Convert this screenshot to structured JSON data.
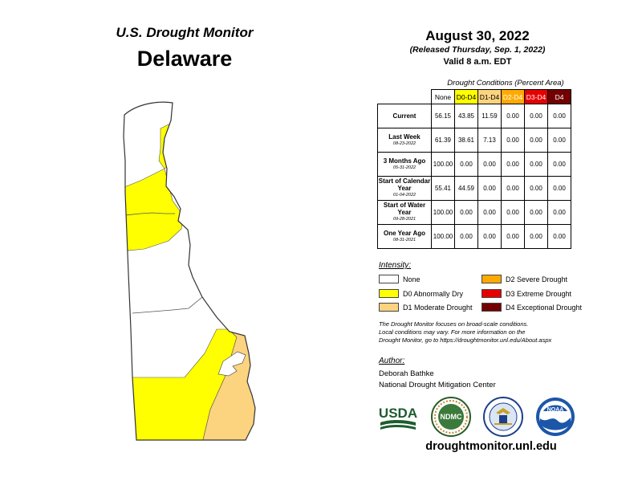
{
  "header": {
    "map_title": "U.S. Drought Monitor",
    "state": "Delaware",
    "date": "August 30, 2022",
    "released": "(Released Thursday, Sep. 1, 2022)",
    "valid": "Valid 8 a.m. EDT"
  },
  "table": {
    "caption": "Drought Conditions (Percent Area)",
    "columns": [
      {
        "label": "None",
        "bg": "#ffffff",
        "fg": "#000000"
      },
      {
        "label": "D0-D4",
        "bg": "#ffff00",
        "fg": "#000000"
      },
      {
        "label": "D1-D4",
        "bg": "#fcd37f",
        "fg": "#000000"
      },
      {
        "label": "D2-D4",
        "bg": "#ffaa00",
        "fg": "#ffffff"
      },
      {
        "label": "D3-D4",
        "bg": "#e60000",
        "fg": "#ffffff"
      },
      {
        "label": "D4",
        "bg": "#730000",
        "fg": "#ffffff"
      }
    ],
    "rows": [
      {
        "label": "Current",
        "sub": "",
        "values": [
          "56.15",
          "43.85",
          "11.59",
          "0.00",
          "0.00",
          "0.00"
        ]
      },
      {
        "label": "Last Week",
        "sub": "08-23-2022",
        "values": [
          "61.39",
          "38.61",
          "7.13",
          "0.00",
          "0.00",
          "0.00"
        ]
      },
      {
        "label": "3 Months Ago",
        "sub": "05-31-2022",
        "values": [
          "100.00",
          "0.00",
          "0.00",
          "0.00",
          "0.00",
          "0.00"
        ]
      },
      {
        "label": "Start of Calendar Year",
        "sub": "01-04-2022",
        "values": [
          "55.41",
          "44.59",
          "0.00",
          "0.00",
          "0.00",
          "0.00"
        ]
      },
      {
        "label": "Start of Water Year",
        "sub": "09-28-2021",
        "values": [
          "100.00",
          "0.00",
          "0.00",
          "0.00",
          "0.00",
          "0.00"
        ]
      },
      {
        "label": "One Year Ago",
        "sub": "08-31-2021",
        "values": [
          "100.00",
          "0.00",
          "0.00",
          "0.00",
          "0.00",
          "0.00"
        ]
      }
    ]
  },
  "legend": {
    "title": "Intensity:",
    "items": [
      {
        "label": "None",
        "color": "#ffffff"
      },
      {
        "label": "D0 Abnormally Dry",
        "color": "#ffff00"
      },
      {
        "label": "D1 Moderate Drought",
        "color": "#fcd37f"
      },
      {
        "label": "D2 Severe Drought",
        "color": "#ffaa00"
      },
      {
        "label": "D3 Extreme Drought",
        "color": "#e60000"
      },
      {
        "label": "D4 Exceptional Drought",
        "color": "#730000"
      }
    ]
  },
  "note": {
    "line1": "The Drought Monitor focuses on broad-scale conditions.",
    "line2": "Local conditions may vary. For more information on the",
    "line3": "Drought Monitor, go to https://droughtmonitor.unl.edu/About.aspx"
  },
  "author": {
    "label": "Author:",
    "name": "Deborah Bathke",
    "org": "National Drought Mitigation Center"
  },
  "logos": {
    "usda": "USDA",
    "ndmc": "NDMC",
    "noaa": "NOAA"
  },
  "website": "droughtmonitor.unl.edu"
}
